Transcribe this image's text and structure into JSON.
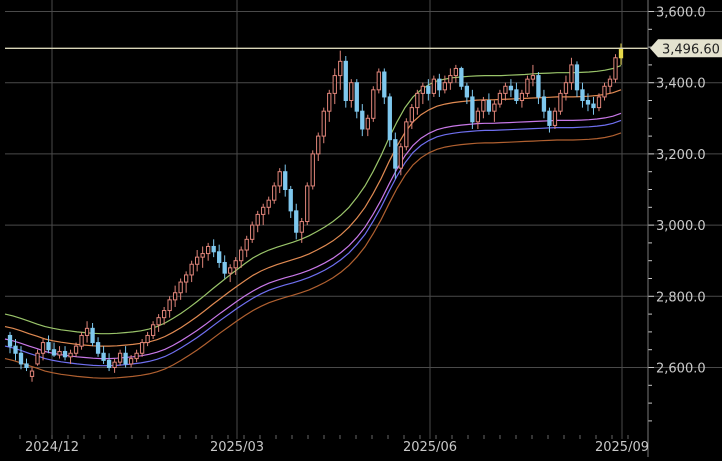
{
  "chart_data": {
    "type": "candlestick",
    "x_ticks": [
      "2024/12",
      "2025/03",
      "2025/06",
      "2025/09"
    ],
    "y_ticks": [
      "2,600.0",
      "2,800.0",
      "3,000.0",
      "3,200.0",
      "3,400.0",
      "3,600.0"
    ],
    "ylim": [
      2400,
      3640
    ],
    "price_label": "3,496.60",
    "price_line": 3496.6,
    "grid": true,
    "colors": {
      "up": "#e0857a",
      "down": "#7fc8ee",
      "last": "#e6d84a",
      "price_line": "#d9d6b8",
      "grid": "#4a4a4a",
      "text": "#c9c9c9",
      "bands": [
        "#9ac46a",
        "#e08a52",
        "#c878e8",
        "#6f6ff0",
        "#b06030"
      ]
    },
    "candles": [
      [
        2690,
        2700,
        2640,
        2660
      ],
      [
        2660,
        2680,
        2620,
        2640
      ],
      [
        2640,
        2660,
        2595,
        2610
      ],
      [
        2610,
        2625,
        2590,
        2600
      ],
      [
        2575,
        2600,
        2560,
        2590
      ],
      [
        2610,
        2650,
        2605,
        2640
      ],
      [
        2640,
        2680,
        2620,
        2670
      ],
      [
        2670,
        2690,
        2640,
        2650
      ],
      [
        2650,
        2670,
        2630,
        2635
      ],
      [
        2635,
        2660,
        2625,
        2645
      ],
      [
        2645,
        2660,
        2620,
        2630
      ],
      [
        2630,
        2650,
        2610,
        2640
      ],
      [
        2640,
        2670,
        2630,
        2660
      ],
      [
        2660,
        2700,
        2650,
        2690
      ],
      [
        2690,
        2730,
        2670,
        2710
      ],
      [
        2710,
        2725,
        2660,
        2670
      ],
      [
        2670,
        2685,
        2630,
        2640
      ],
      [
        2640,
        2660,
        2610,
        2620
      ],
      [
        2620,
        2640,
        2590,
        2600
      ],
      [
        2600,
        2625,
        2585,
        2615
      ],
      [
        2615,
        2650,
        2605,
        2640
      ],
      [
        2640,
        2660,
        2600,
        2610
      ],
      [
        2610,
        2635,
        2600,
        2625
      ],
      [
        2625,
        2650,
        2615,
        2640
      ],
      [
        2640,
        2680,
        2630,
        2670
      ],
      [
        2670,
        2700,
        2660,
        2690
      ],
      [
        2690,
        2730,
        2680,
        2720
      ],
      [
        2720,
        2750,
        2700,
        2740
      ],
      [
        2740,
        2770,
        2720,
        2760
      ],
      [
        2760,
        2800,
        2740,
        2790
      ],
      [
        2790,
        2830,
        2770,
        2810
      ],
      [
        2810,
        2850,
        2790,
        2840
      ],
      [
        2840,
        2870,
        2810,
        2860
      ],
      [
        2860,
        2900,
        2840,
        2890
      ],
      [
        2890,
        2930,
        2870,
        2910
      ],
      [
        2910,
        2940,
        2880,
        2920
      ],
      [
        2920,
        2950,
        2900,
        2940
      ],
      [
        2940,
        2960,
        2910,
        2925
      ],
      [
        2925,
        2945,
        2880,
        2895
      ],
      [
        2895,
        2915,
        2850,
        2865
      ],
      [
        2865,
        2890,
        2840,
        2880
      ],
      [
        2880,
        2910,
        2860,
        2900
      ],
      [
        2900,
        2940,
        2880,
        2930
      ],
      [
        2930,
        2970,
        2910,
        2960
      ],
      [
        2960,
        3010,
        2950,
        3000
      ],
      [
        3000,
        3040,
        2980,
        3030
      ],
      [
        3030,
        3060,
        3000,
        3050
      ],
      [
        3050,
        3080,
        3030,
        3070
      ],
      [
        3070,
        3120,
        3060,
        3110
      ],
      [
        3110,
        3160,
        3090,
        3150
      ],
      [
        3150,
        3170,
        3080,
        3100
      ],
      [
        3100,
        3110,
        3020,
        3040
      ],
      [
        3040,
        3060,
        2960,
        2980
      ],
      [
        2980,
        3020,
        2950,
        3010
      ],
      [
        3010,
        3120,
        3000,
        3110
      ],
      [
        3110,
        3210,
        3100,
        3200
      ],
      [
        3200,
        3260,
        3180,
        3250
      ],
      [
        3250,
        3330,
        3230,
        3320
      ],
      [
        3320,
        3380,
        3290,
        3370
      ],
      [
        3370,
        3440,
        3340,
        3420
      ],
      [
        3420,
        3490,
        3380,
        3460
      ],
      [
        3460,
        3475,
        3330,
        3350
      ],
      [
        3350,
        3410,
        3330,
        3400
      ],
      [
        3400,
        3410,
        3300,
        3320
      ],
      [
        3320,
        3340,
        3250,
        3270
      ],
      [
        3270,
        3310,
        3250,
        3300
      ],
      [
        3300,
        3390,
        3290,
        3380
      ],
      [
        3380,
        3440,
        3370,
        3430
      ],
      [
        3430,
        3440,
        3340,
        3360
      ],
      [
        3360,
        3370,
        3220,
        3240
      ],
      [
        3240,
        3260,
        3130,
        3160
      ],
      [
        3160,
        3230,
        3140,
        3220
      ],
      [
        3220,
        3300,
        3210,
        3290
      ],
      [
        3290,
        3340,
        3270,
        3330
      ],
      [
        3330,
        3380,
        3310,
        3370
      ],
      [
        3370,
        3400,
        3340,
        3390
      ],
      [
        3390,
        3410,
        3350,
        3370
      ],
      [
        3370,
        3420,
        3360,
        3410
      ],
      [
        3410,
        3425,
        3360,
        3380
      ],
      [
        3380,
        3420,
        3370,
        3400
      ],
      [
        3400,
        3440,
        3380,
        3420
      ],
      [
        3420,
        3450,
        3400,
        3440
      ],
      [
        3440,
        3445,
        3380,
        3390
      ],
      [
        3390,
        3400,
        3340,
        3360
      ],
      [
        3360,
        3380,
        3270,
        3290
      ],
      [
        3290,
        3330,
        3270,
        3320
      ],
      [
        3320,
        3360,
        3300,
        3350
      ],
      [
        3350,
        3370,
        3310,
        3320
      ],
      [
        3320,
        3350,
        3290,
        3340
      ],
      [
        3340,
        3380,
        3330,
        3370
      ],
      [
        3370,
        3400,
        3350,
        3390
      ],
      [
        3390,
        3410,
        3360,
        3380
      ],
      [
        3380,
        3400,
        3340,
        3350
      ],
      [
        3350,
        3380,
        3330,
        3370
      ],
      [
        3370,
        3420,
        3360,
        3410
      ],
      [
        3410,
        3450,
        3390,
        3420
      ],
      [
        3420,
        3430,
        3340,
        3360
      ],
      [
        3360,
        3380,
        3300,
        3320
      ],
      [
        3320,
        3330,
        3260,
        3280
      ],
      [
        3280,
        3330,
        3270,
        3320
      ],
      [
        3320,
        3380,
        3310,
        3370
      ],
      [
        3370,
        3420,
        3350,
        3400
      ],
      [
        3400,
        3470,
        3380,
        3450
      ],
      [
        3450,
        3460,
        3360,
        3380
      ],
      [
        3380,
        3400,
        3330,
        3350
      ],
      [
        3350,
        3370,
        3320,
        3340
      ],
      [
        3340,
        3360,
        3310,
        3330
      ],
      [
        3330,
        3370,
        3320,
        3360
      ],
      [
        3360,
        3400,
        3350,
        3390
      ],
      [
        3390,
        3420,
        3370,
        3410
      ],
      [
        3410,
        3480,
        3400,
        3470
      ],
      [
        3470,
        3510,
        3450,
        3497
      ]
    ],
    "bands": [
      [
        2750,
        2745,
        2738,
        2730,
        2722,
        2715,
        2710,
        2706,
        2703,
        2700,
        2698,
        2696,
        2695,
        2695,
        2696,
        2698,
        2700,
        2703,
        2708,
        2715,
        2725,
        2738,
        2752,
        2768,
        2785,
        2803,
        2822,
        2840,
        2858,
        2875,
        2892,
        2908,
        2920,
        2930,
        2938,
        2945,
        2952,
        2960,
        2970,
        2982,
        2995,
        3010,
        3028,
        3050,
        3078,
        3110,
        3150,
        3195,
        3245,
        3290,
        3330,
        3360,
        3380,
        3395,
        3405,
        3410,
        3414,
        3416,
        3418,
        3419,
        3420,
        3420,
        3420,
        3421,
        3422,
        3423,
        3425,
        3426,
        3427,
        3428,
        3428,
        3428,
        3429,
        3430,
        3432,
        3435,
        3440,
        3448
      ],
      [
        2715,
        2710,
        2703,
        2695,
        2688,
        2680,
        2675,
        2671,
        2668,
        2665,
        2663,
        2661,
        2660,
        2660,
        2661,
        2663,
        2665,
        2668,
        2672,
        2678,
        2687,
        2699,
        2712,
        2727,
        2743,
        2760,
        2778,
        2795,
        2812,
        2828,
        2844,
        2859,
        2871,
        2881,
        2889,
        2896,
        2903,
        2910,
        2919,
        2930,
        2942,
        2956,
        2973,
        2994,
        3020,
        3050,
        3088,
        3130,
        3178,
        3222,
        3260,
        3290,
        3310,
        3324,
        3334,
        3340,
        3344,
        3347,
        3349,
        3351,
        3352,
        3352,
        3353,
        3354,
        3355,
        3356,
        3357,
        3358,
        3359,
        3360,
        3360,
        3360,
        3361,
        3362,
        3364,
        3367,
        3372,
        3380
      ],
      [
        2680,
        2675,
        2668,
        2660,
        2653,
        2645,
        2640,
        2636,
        2633,
        2630,
        2628,
        2626,
        2625,
        2625,
        2626,
        2628,
        2630,
        2633,
        2637,
        2643,
        2651,
        2662,
        2675,
        2689,
        2704,
        2720,
        2737,
        2754,
        2770,
        2786,
        2801,
        2815,
        2827,
        2837,
        2845,
        2852,
        2858,
        2865,
        2873,
        2883,
        2894,
        2907,
        2923,
        2942,
        2966,
        2994,
        3030,
        3070,
        3115,
        3158,
        3195,
        3224,
        3244,
        3258,
        3268,
        3274,
        3278,
        3281,
        3283,
        3285,
        3286,
        3286,
        3287,
        3288,
        3289,
        3290,
        3291,
        3292,
        3293,
        3294,
        3294,
        3294,
        3295,
        3296,
        3298,
        3301,
        3306,
        3314
      ],
      [
        2660,
        2655,
        2648,
        2640,
        2633,
        2625,
        2620,
        2616,
        2613,
        2610,
        2608,
        2606,
        2605,
        2605,
        2606,
        2608,
        2610,
        2613,
        2617,
        2623,
        2631,
        2642,
        2655,
        2669,
        2684,
        2700,
        2717,
        2734,
        2750,
        2766,
        2781,
        2795,
        2807,
        2817,
        2825,
        2832,
        2838,
        2845,
        2853,
        2863,
        2874,
        2887,
        2903,
        2922,
        2946,
        2974,
        3010,
        3050,
        3095,
        3138,
        3175,
        3204,
        3224,
        3238,
        3248,
        3254,
        3258,
        3261,
        3263,
        3265,
        3266,
        3266,
        3267,
        3268,
        3269,
        3270,
        3271,
        3272,
        3273,
        3274,
        3274,
        3274,
        3275,
        3276,
        3278,
        3281,
        3286,
        3294
      ],
      [
        2625,
        2620,
        2613,
        2605,
        2598,
        2590,
        2585,
        2581,
        2578,
        2575,
        2573,
        2571,
        2570,
        2570,
        2571,
        2573,
        2575,
        2578,
        2582,
        2588,
        2596,
        2607,
        2620,
        2634,
        2649,
        2665,
        2682,
        2699,
        2715,
        2731,
        2746,
        2760,
        2772,
        2782,
        2790,
        2797,
        2803,
        2810,
        2818,
        2828,
        2839,
        2852,
        2868,
        2887,
        2911,
        2939,
        2975,
        3015,
        3060,
        3103,
        3140,
        3169,
        3189,
        3203,
        3213,
        3219,
        3223,
        3226,
        3228,
        3230,
        3231,
        3231,
        3232,
        3233,
        3234,
        3235,
        3236,
        3237,
        3238,
        3239,
        3239,
        3239,
        3240,
        3241,
        3243,
        3246,
        3251,
        3259
      ]
    ]
  }
}
